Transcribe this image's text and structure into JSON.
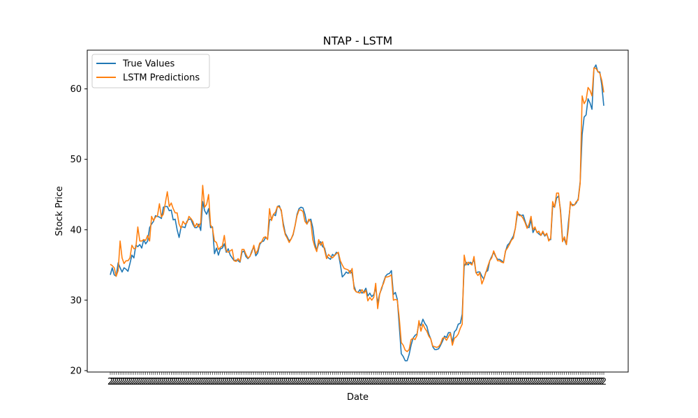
{
  "chart_data": {
    "type": "line",
    "title": "NTAP - LSTM",
    "xlabel": "Date",
    "ylabel": "Stock Price",
    "ylim": [
      19.8,
      65.5
    ],
    "yticks": [
      20,
      30,
      40,
      50,
      60
    ],
    "xtick_label": "2",
    "grid": false,
    "legend": "top-left",
    "series": [
      {
        "name": "True Values",
        "color": "#1f77b4",
        "values": [
          33.6,
          34.6,
          33.6,
          33.4,
          35.3,
          34.6,
          34.0,
          34.6,
          34.4,
          34.1,
          35.2,
          36.4,
          36.0,
          37.8,
          37.6,
          37.9,
          37.4,
          38.6,
          38.0,
          38.4,
          40.3,
          40.8,
          41.2,
          42.0,
          41.9,
          41.8,
          41.6,
          43.2,
          43.3,
          43.3,
          42.7,
          42.8,
          41.4,
          41.5,
          40.0,
          38.9,
          40.4,
          40.4,
          40.3,
          41.2,
          41.5,
          41.5,
          40.8,
          40.3,
          40.3,
          40.8,
          39.9,
          44.0,
          42.7,
          42.2,
          43.0,
          40.3,
          40.4,
          36.6,
          37.4,
          36.4,
          37.3,
          37.4,
          38.0,
          36.8,
          37.3,
          36.4,
          36.0,
          35.6,
          35.7,
          35.6,
          35.4,
          36.8,
          37.0,
          36.2,
          35.9,
          36.2,
          37.0,
          37.6,
          36.3,
          36.7,
          37.9,
          38.3,
          38.4,
          38.9,
          38.7,
          41.4,
          41.5,
          42.2,
          42.0,
          43.3,
          43.4,
          42.6,
          40.9,
          39.5,
          39.0,
          38.4,
          38.7,
          39.3,
          40.6,
          42.2,
          43.0,
          43.2,
          43.1,
          42.2,
          40.8,
          41.3,
          41.5,
          40.3,
          38.1,
          37.1,
          38.0,
          38.3,
          37.6,
          37.4,
          36.2,
          36.0,
          35.8,
          36.5,
          36.3,
          36.8,
          36.6,
          35.1,
          33.3,
          33.6,
          34.0,
          33.8,
          34.2,
          33.8,
          32.0,
          31.2,
          31.1,
          31.5,
          31.0,
          31.2,
          31.7,
          30.6,
          31.0,
          30.5,
          30.8,
          31.7,
          29.6,
          30.9,
          31.6,
          32.6,
          33.4,
          33.7,
          33.8,
          34.2,
          30.8,
          31.1,
          30.1,
          26.3,
          22.4,
          22.0,
          21.4,
          21.4,
          22.3,
          23.6,
          24.6,
          25.0,
          25.2,
          26.8,
          26.4,
          27.3,
          26.7,
          26.3,
          25.2,
          24.5,
          23.4,
          23.0,
          23.0,
          23.1,
          23.6,
          24.2,
          24.9,
          24.7,
          25.4,
          25.4,
          24.0,
          25.5,
          25.8,
          26.6,
          26.7,
          28.0,
          34.8,
          35.4,
          35.0,
          35.4,
          35.2,
          35.8,
          33.9,
          34.0,
          34.0,
          33.4,
          33.0,
          34.0,
          34.2,
          35.6,
          36.2,
          36.8,
          36.2,
          35.8,
          35.8,
          35.6,
          35.4,
          36.9,
          37.8,
          38.1,
          38.6,
          39.1,
          40.2,
          42.1,
          42.2,
          42.0,
          42.1,
          41.2,
          40.4,
          40.3,
          41.4,
          39.6,
          40.2,
          39.7,
          39.4,
          39.2,
          39.6,
          39.1,
          39.4,
          38.6,
          38.6,
          43.4,
          43.2,
          44.5,
          44.8,
          42.8,
          38.7,
          38.6,
          37.9,
          41.0,
          43.6,
          43.6,
          43.5,
          43.8,
          44.4,
          46.8,
          53.5,
          56.0,
          56.3,
          58.6,
          58.0,
          57.1,
          62.9,
          63.4,
          62.4,
          62.4,
          60.5,
          57.6
        ]
      },
      {
        "name": "LSTM Predictions",
        "color": "#ff7f0e",
        "values": [
          35.1,
          34.9,
          34.6,
          33.4,
          34.2,
          38.4,
          36.0,
          35.2,
          35.6,
          35.6,
          36.0,
          37.8,
          37.3,
          37.4,
          40.4,
          38.4,
          38.4,
          38.6,
          38.5,
          39.2,
          38.4,
          41.9,
          41.3,
          41.8,
          42.0,
          43.7,
          41.8,
          42.2,
          43.8,
          45.4,
          43.3,
          43.8,
          43.0,
          42.4,
          42.4,
          40.8,
          40.2,
          41.2,
          40.8,
          41.0,
          41.9,
          41.6,
          41.2,
          40.4,
          40.9,
          40.4,
          41.0,
          46.3,
          43.2,
          43.6,
          45.0,
          40.7,
          40.2,
          38.4,
          38.2,
          37.2,
          37.5,
          37.7,
          39.2,
          37.0,
          36.8,
          37.0,
          37.2,
          35.6,
          35.5,
          35.9,
          35.5,
          37.2,
          37.2,
          36.5,
          36.0,
          36.2,
          36.8,
          37.8,
          36.6,
          37.1,
          38.1,
          38.3,
          38.9,
          39.0,
          38.6,
          43.0,
          41.3,
          42.2,
          42.5,
          43.3,
          43.2,
          42.8,
          40.5,
          39.3,
          38.8,
          38.2,
          38.7,
          39.4,
          40.6,
          42.0,
          42.8,
          42.8,
          42.6,
          41.2,
          40.8,
          41.5,
          41.1,
          38.6,
          37.6,
          36.9,
          38.6,
          37.8,
          38.3,
          37.1,
          35.9,
          36.5,
          36.2,
          36.0,
          36.3,
          36.6,
          36.8,
          35.6,
          35.0,
          34.5,
          34.4,
          34.3,
          33.8,
          34.5,
          31.6,
          31.2,
          31.1,
          31.0,
          31.5,
          31.0,
          31.4,
          29.9,
          30.4,
          30.0,
          30.4,
          32.4,
          28.8,
          30.8,
          31.8,
          32.4,
          33.3,
          33.3,
          33.4,
          33.6,
          30.0,
          30.1,
          30.0,
          27.4,
          24.0,
          23.6,
          22.9,
          22.7,
          23.0,
          24.4,
          24.6,
          24.4,
          25.0,
          27.1,
          25.6,
          26.6,
          26.0,
          25.6,
          24.9,
          24.5,
          23.5,
          23.4,
          23.3,
          23.4,
          23.8,
          24.6,
          24.7,
          24.3,
          24.8,
          25.3,
          23.6,
          24.6,
          24.8,
          25.2,
          26.0,
          26.6,
          36.4,
          35.0,
          35.4,
          35.2,
          35.0,
          36.2,
          33.9,
          33.5,
          33.9,
          32.3,
          33.0,
          33.9,
          34.8,
          35.6,
          36.0,
          37.0,
          36.3,
          35.6,
          35.6,
          35.4,
          35.3,
          37.0,
          37.4,
          37.9,
          38.5,
          38.8,
          40.2,
          42.6,
          42.0,
          42.0,
          41.6,
          41.0,
          40.2,
          40.8,
          41.9,
          40.0,
          40.4,
          39.6,
          39.8,
          39.2,
          39.8,
          39.2,
          39.5,
          38.4,
          38.8,
          44.0,
          43.2,
          45.2,
          45.2,
          42.5,
          38.3,
          39.0,
          37.9,
          40.2,
          44.0,
          43.4,
          43.5,
          44.0,
          44.2,
          46.6,
          59.0,
          57.9,
          58.4,
          60.2,
          59.8,
          59.0,
          63.0,
          62.9,
          62.5,
          62.2,
          61.2,
          59.5
        ]
      }
    ]
  }
}
